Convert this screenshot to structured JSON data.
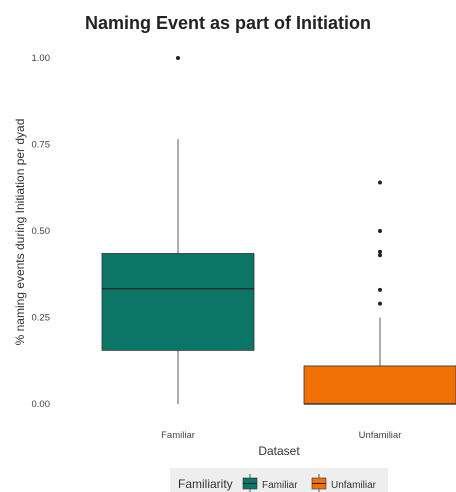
{
  "chart_data": {
    "type": "boxplot",
    "title": "Naming Event as part of Initiation",
    "xlabel": "Dataset",
    "ylabel": "% naming events during Initiation per dyad",
    "ylim": [
      0,
      1
    ],
    "yticks": [
      "0.00",
      "0.25",
      "0.50",
      "0.75",
      "1.00"
    ],
    "yticks_values": [
      0,
      0.25,
      0.5,
      0.75,
      1.0
    ],
    "categories": [
      "Familiar",
      "Unfamiliar"
    ],
    "grid": false,
    "legend": {
      "title": "Familiarity",
      "placement": "bottom",
      "entries": [
        "Familiar",
        "Unfamiliar"
      ]
    },
    "series": [
      {
        "name": "Familiar",
        "color": "#0b7566",
        "min": 0.0,
        "q1": 0.155,
        "median": 0.333,
        "q3": 0.435,
        "max": 0.765,
        "outliers": [
          1.0
        ]
      },
      {
        "name": "Unfamiliar",
        "color": "#f07006",
        "min": 0.0,
        "q1": 0.0,
        "median": 0.0,
        "q3": 0.11,
        "max": 0.25,
        "outliers": [
          0.29,
          0.33,
          0.43,
          0.44,
          0.5,
          0.64
        ]
      }
    ]
  }
}
